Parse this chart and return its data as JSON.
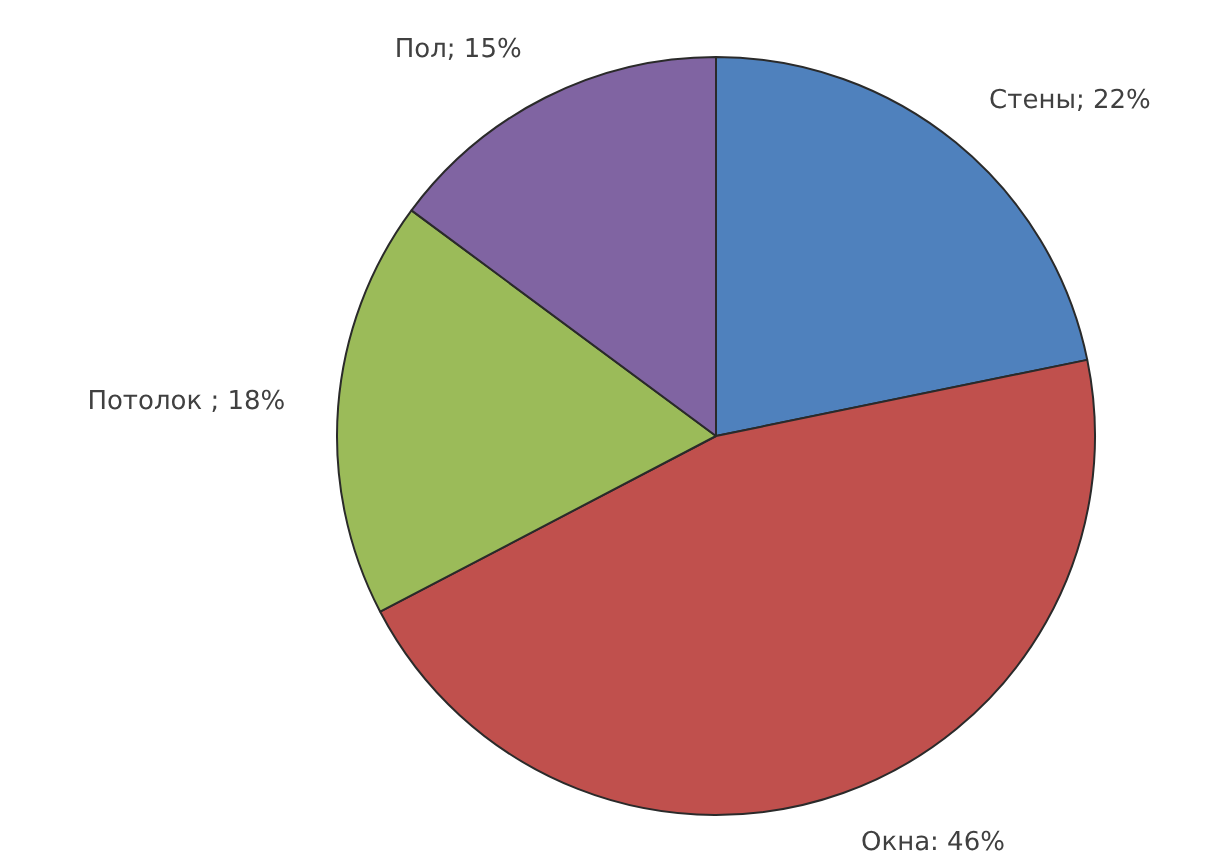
{
  "chart_data": {
    "type": "pie",
    "categories": [
      "Стены; 22%",
      "Окна: 46%",
      "Потолок ; 18%",
      "Пол; 15%"
    ],
    "values": [
      22,
      46,
      18,
      15
    ],
    "colors": [
      "#4f81bd",
      "#c0504d",
      "#9bbb59",
      "#8064a2"
    ]
  }
}
